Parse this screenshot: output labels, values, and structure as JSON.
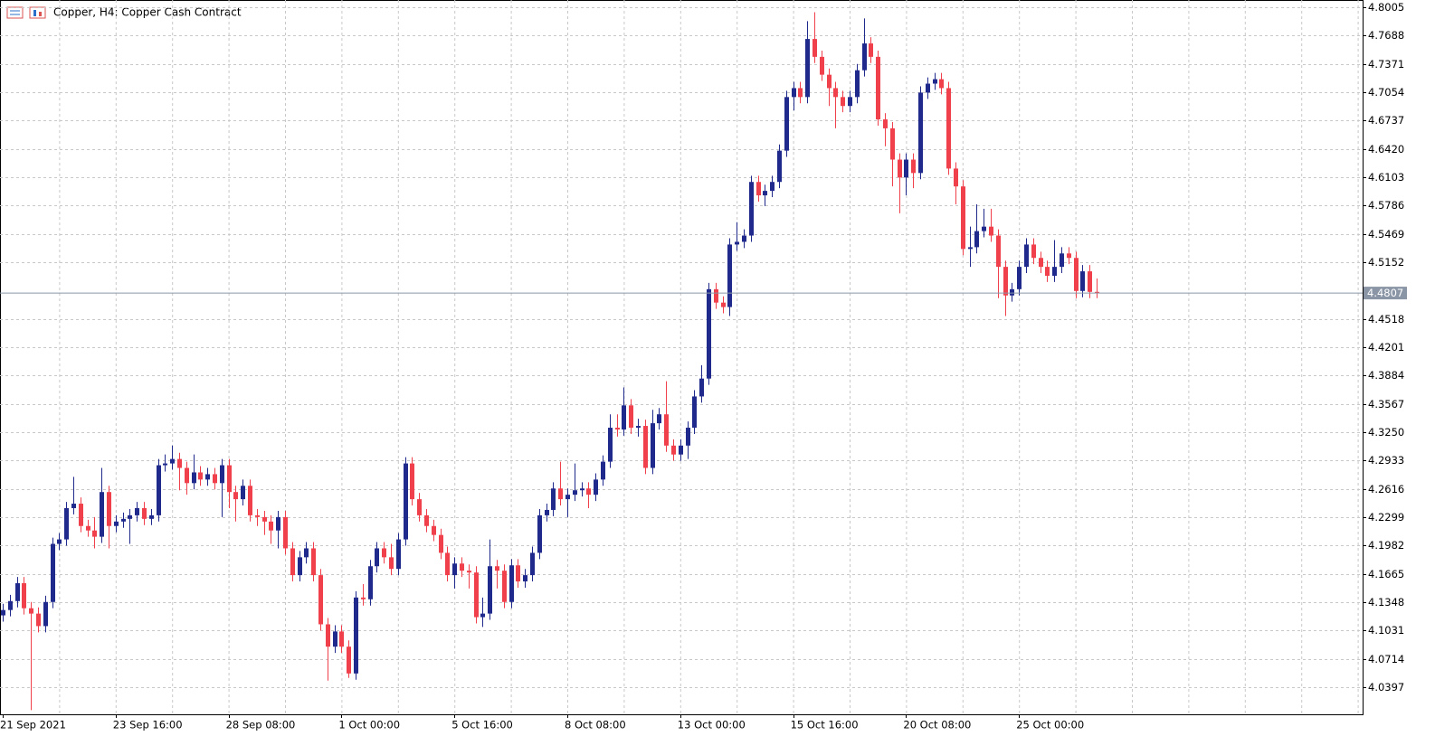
{
  "chart_data": {
    "type": "candlestick",
    "title": "Copper, H4:  Copper Cash Contract",
    "bull_color": "#1f2a8c",
    "bear_color": "#f0404c",
    "ylim": [
      4.0093,
      4.8086
    ],
    "yticks": [
      {
        "value": 4.8005,
        "label": "4.8005"
      },
      {
        "value": 4.7688,
        "label": "4.7688"
      },
      {
        "value": 4.7371,
        "label": "4.7371"
      },
      {
        "value": 4.7054,
        "label": "4.7054"
      },
      {
        "value": 4.6737,
        "label": "4.6737"
      },
      {
        "value": 4.642,
        "label": "4.6420"
      },
      {
        "value": 4.6103,
        "label": "4.6103"
      },
      {
        "value": 4.5786,
        "label": "4.5786"
      },
      {
        "value": 4.5469,
        "label": "4.5469"
      },
      {
        "value": 4.5152,
        "label": "4.5152"
      },
      {
        "value": 4.4518,
        "label": "4.4518"
      },
      {
        "value": 4.4201,
        "label": "4.4201"
      },
      {
        "value": 4.3884,
        "label": "4.3884"
      },
      {
        "value": 4.3567,
        "label": "4.3567"
      },
      {
        "value": 4.325,
        "label": "4.3250"
      },
      {
        "value": 4.2933,
        "label": "4.2933"
      },
      {
        "value": 4.2616,
        "label": "4.2616"
      },
      {
        "value": 4.2299,
        "label": "4.2299"
      },
      {
        "value": 4.1982,
        "label": "4.1982"
      },
      {
        "value": 4.1665,
        "label": "4.1665"
      },
      {
        "value": 4.1348,
        "label": "4.1348"
      },
      {
        "value": 4.1031,
        "label": "4.1031"
      },
      {
        "value": 4.0714,
        "label": "4.0714"
      },
      {
        "value": 4.0397,
        "label": "4.0397"
      }
    ],
    "grid": true,
    "current_price": 4.4807,
    "categories": [
      "21 Sep 2021",
      null,
      null,
      null,
      null,
      null,
      null,
      null,
      null,
      null,
      null,
      null,
      null,
      null,
      null,
      null,
      "23 Sep 16:00",
      null,
      null,
      null,
      null,
      null,
      null,
      null,
      null,
      null,
      null,
      null,
      null,
      null,
      null,
      null,
      "28 Sep 08:00",
      null,
      null,
      null,
      null,
      null,
      null,
      null,
      null,
      null,
      null,
      null,
      null,
      null,
      null,
      null,
      "1 Oct 00:00",
      null,
      null,
      null,
      null,
      null,
      null,
      null,
      null,
      null,
      null,
      null,
      null,
      null,
      null,
      null,
      "5 Oct 16:00",
      null,
      null,
      null,
      null,
      null,
      null,
      null,
      null,
      null,
      null,
      null,
      null,
      null,
      null,
      null,
      "8 Oct 08:00",
      null,
      null,
      null,
      null,
      null,
      null,
      null,
      null,
      null,
      null,
      null,
      null,
      null,
      null,
      null,
      "13 Oct 00:00",
      null,
      null,
      null,
      null,
      null,
      null,
      null,
      null,
      null,
      null,
      null,
      null,
      null,
      null,
      null,
      "15 Oct 16:00",
      null,
      null,
      null,
      null,
      null,
      null,
      null,
      null,
      null,
      null,
      null,
      null,
      null,
      null,
      null,
      "20 Oct 08:00",
      null,
      null,
      null,
      null,
      null,
      null,
      null,
      null,
      null,
      null,
      null,
      null,
      null,
      null,
      null,
      "25 Oct 00:00",
      null,
      null,
      null,
      null,
      null,
      null,
      null,
      null,
      null,
      null,
      null
    ],
    "ohlc": [
      [
        4.12,
        4.133,
        4.113,
        4.126
      ],
      [
        4.126,
        4.143,
        4.119,
        4.136
      ],
      [
        4.136,
        4.163,
        4.129,
        4.156
      ],
      [
        4.156,
        4.163,
        4.121,
        4.128
      ],
      [
        4.128,
        4.135,
        4.014,
        4.122
      ],
      [
        4.122,
        4.129,
        4.101,
        4.108
      ],
      [
        4.108,
        4.142,
        4.101,
        4.135
      ],
      [
        4.135,
        4.207,
        4.128,
        4.2
      ],
      [
        4.2,
        4.212,
        4.193,
        4.205
      ],
      [
        4.205,
        4.247,
        4.198,
        4.24
      ],
      [
        4.24,
        4.275,
        4.233,
        4.245
      ],
      [
        4.245,
        4.252,
        4.213,
        4.22
      ],
      [
        4.22,
        4.227,
        4.208,
        4.215
      ],
      [
        4.215,
        4.23,
        4.195,
        4.208
      ],
      [
        4.208,
        4.285,
        4.201,
        4.258
      ],
      [
        4.258,
        4.265,
        4.195,
        4.22
      ],
      [
        4.22,
        4.232,
        4.213,
        4.225
      ],
      [
        4.225,
        4.235,
        4.218,
        4.228
      ],
      [
        4.228,
        4.239,
        4.2,
        4.232
      ],
      [
        4.232,
        4.247,
        4.225,
        4.24
      ],
      [
        4.24,
        4.247,
        4.221,
        4.228
      ],
      [
        4.228,
        4.239,
        4.221,
        4.232
      ],
      [
        4.232,
        4.295,
        4.225,
        4.288
      ],
      [
        4.288,
        4.3,
        4.281,
        4.29
      ],
      [
        4.29,
        4.31,
        4.283,
        4.295
      ],
      [
        4.295,
        4.302,
        4.26,
        4.285
      ],
      [
        4.285,
        4.292,
        4.255,
        4.268
      ],
      [
        4.268,
        4.3,
        4.261,
        4.28
      ],
      [
        4.28,
        4.287,
        4.265,
        4.272
      ],
      [
        4.272,
        4.285,
        4.265,
        4.278
      ],
      [
        4.278,
        4.285,
        4.261,
        4.268
      ],
      [
        4.268,
        4.295,
        4.23,
        4.288
      ],
      [
        4.288,
        4.295,
        4.24,
        4.258
      ],
      [
        4.258,
        4.265,
        4.225,
        4.25
      ],
      [
        4.25,
        4.272,
        4.243,
        4.265
      ],
      [
        4.265,
        4.272,
        4.225,
        4.232
      ],
      [
        4.232,
        4.239,
        4.22,
        4.23
      ],
      [
        4.23,
        4.237,
        4.21,
        4.225
      ],
      [
        4.225,
        4.232,
        4.2,
        4.215
      ],
      [
        4.215,
        4.237,
        4.195,
        4.23
      ],
      [
        4.23,
        4.237,
        4.188,
        4.195
      ],
      [
        4.195,
        4.202,
        4.158,
        4.165
      ],
      [
        4.165,
        4.192,
        4.158,
        4.185
      ],
      [
        4.185,
        4.202,
        4.178,
        4.195
      ],
      [
        4.195,
        4.202,
        4.158,
        4.165
      ],
      [
        4.165,
        4.172,
        4.103,
        4.11
      ],
      [
        4.11,
        4.117,
        4.047,
        4.085
      ],
      [
        4.085,
        4.109,
        4.078,
        4.102
      ],
      [
        4.102,
        4.109,
        4.078,
        4.085
      ],
      [
        4.085,
        4.092,
        4.05,
        4.055
      ],
      [
        4.055,
        4.147,
        4.048,
        4.14
      ],
      [
        4.14,
        4.155,
        4.131,
        4.138
      ],
      [
        4.138,
        4.182,
        4.131,
        4.175
      ],
      [
        4.175,
        4.202,
        4.168,
        4.195
      ],
      [
        4.195,
        4.202,
        4.178,
        4.185
      ],
      [
        4.185,
        4.2,
        4.165,
        4.172
      ],
      [
        4.172,
        4.212,
        4.165,
        4.205
      ],
      [
        4.205,
        4.297,
        4.198,
        4.29
      ],
      [
        4.29,
        4.297,
        4.243,
        4.25
      ],
      [
        4.25,
        4.257,
        4.225,
        4.232
      ],
      [
        4.232,
        4.239,
        4.213,
        4.22
      ],
      [
        4.22,
        4.227,
        4.203,
        4.21
      ],
      [
        4.21,
        4.217,
        4.183,
        4.19
      ],
      [
        4.19,
        4.197,
        4.158,
        4.165
      ],
      [
        4.165,
        4.185,
        4.15,
        4.178
      ],
      [
        4.178,
        4.185,
        4.163,
        4.17
      ],
      [
        4.17,
        4.177,
        4.15,
        4.168
      ],
      [
        4.168,
        4.175,
        4.111,
        4.118
      ],
      [
        4.118,
        4.14,
        4.107,
        4.122
      ],
      [
        4.122,
        4.205,
        4.115,
        4.175
      ],
      [
        4.175,
        4.182,
        4.15,
        4.17
      ],
      [
        4.17,
        4.177,
        4.128,
        4.135
      ],
      [
        4.135,
        4.183,
        4.128,
        4.176
      ],
      [
        4.176,
        4.183,
        4.151,
        4.158
      ],
      [
        4.158,
        4.172,
        4.151,
        4.165
      ],
      [
        4.165,
        4.197,
        4.158,
        4.19
      ],
      [
        4.19,
        4.239,
        4.183,
        4.232
      ],
      [
        4.232,
        4.245,
        4.225,
        4.238
      ],
      [
        4.238,
        4.269,
        4.231,
        4.262
      ],
      [
        4.262,
        4.292,
        4.243,
        4.25
      ],
      [
        4.25,
        4.262,
        4.23,
        4.255
      ],
      [
        4.255,
        4.29,
        4.248,
        4.26
      ],
      [
        4.26,
        4.269,
        4.253,
        4.262
      ],
      [
        4.262,
        4.269,
        4.24,
        4.255
      ],
      [
        4.255,
        4.279,
        4.248,
        4.272
      ],
      [
        4.272,
        4.299,
        4.265,
        4.292
      ],
      [
        4.292,
        4.345,
        4.285,
        4.33
      ],
      [
        4.33,
        4.345,
        4.32,
        4.328
      ],
      [
        4.328,
        4.375,
        4.321,
        4.355
      ],
      [
        4.355,
        4.362,
        4.323,
        4.33
      ],
      [
        4.33,
        4.34,
        4.32,
        4.332
      ],
      [
        4.332,
        4.339,
        4.278,
        4.285
      ],
      [
        4.285,
        4.35,
        4.278,
        4.335
      ],
      [
        4.335,
        4.352,
        4.328,
        4.345
      ],
      [
        4.345,
        4.382,
        4.303,
        4.31
      ],
      [
        4.31,
        4.317,
        4.293,
        4.3
      ],
      [
        4.3,
        4.317,
        4.293,
        4.31
      ],
      [
        4.31,
        4.337,
        4.295,
        4.33
      ],
      [
        4.33,
        4.372,
        4.323,
        4.365
      ],
      [
        4.365,
        4.4,
        4.358,
        4.385
      ],
      [
        4.385,
        4.492,
        4.378,
        4.485
      ],
      [
        4.485,
        4.492,
        4.463,
        4.47
      ],
      [
        4.47,
        4.477,
        4.458,
        4.465
      ],
      [
        4.465,
        4.542,
        4.455,
        4.535
      ],
      [
        4.535,
        4.56,
        4.528,
        4.538
      ],
      [
        4.538,
        4.552,
        4.531,
        4.545
      ],
      [
        4.545,
        4.612,
        4.538,
        4.605
      ],
      [
        4.605,
        4.612,
        4.583,
        4.59
      ],
      [
        4.59,
        4.602,
        4.578,
        4.595
      ],
      [
        4.595,
        4.612,
        4.588,
        4.605
      ],
      [
        4.605,
        4.647,
        4.598,
        4.64
      ],
      [
        4.64,
        4.707,
        4.633,
        4.7
      ],
      [
        4.7,
        4.717,
        4.685,
        4.71
      ],
      [
        4.71,
        4.717,
        4.693,
        4.7
      ],
      [
        4.7,
        4.785,
        4.693,
        4.765
      ],
      [
        4.765,
        4.795,
        4.738,
        4.745
      ],
      [
        4.745,
        4.752,
        4.718,
        4.725
      ],
      [
        4.725,
        4.732,
        4.69,
        4.71
      ],
      [
        4.71,
        4.717,
        4.665,
        4.7
      ],
      [
        4.7,
        4.707,
        4.683,
        4.69
      ],
      [
        4.69,
        4.707,
        4.683,
        4.7
      ],
      [
        4.7,
        4.737,
        4.693,
        4.73
      ],
      [
        4.73,
        4.788,
        4.723,
        4.76
      ],
      [
        4.76,
        4.767,
        4.738,
        4.745
      ],
      [
        4.745,
        4.752,
        4.668,
        4.675
      ],
      [
        4.675,
        4.682,
        4.645,
        4.665
      ],
      [
        4.665,
        4.672,
        4.6,
        4.63
      ],
      [
        4.63,
        4.637,
        4.57,
        4.61
      ],
      [
        4.61,
        4.637,
        4.59,
        4.63
      ],
      [
        4.63,
        4.637,
        4.598,
        4.615
      ],
      [
        4.615,
        4.712,
        4.608,
        4.705
      ],
      [
        4.705,
        4.722,
        4.698,
        4.715
      ],
      [
        4.715,
        4.727,
        4.708,
        4.72
      ],
      [
        4.72,
        4.727,
        4.703,
        4.71
      ],
      [
        4.71,
        4.717,
        4.613,
        4.62
      ],
      [
        4.62,
        4.627,
        4.58,
        4.6
      ],
      [
        4.6,
        4.607,
        4.523,
        4.53
      ],
      [
        4.53,
        4.555,
        4.51,
        4.532
      ],
      [
        4.532,
        4.58,
        4.525,
        4.55
      ],
      [
        4.55,
        4.575,
        4.543,
        4.555
      ],
      [
        4.555,
        4.575,
        4.538,
        4.545
      ],
      [
        4.545,
        4.552,
        4.475,
        4.51
      ],
      [
        4.51,
        4.517,
        4.455,
        4.478
      ],
      [
        4.478,
        4.492,
        4.471,
        4.485
      ],
      [
        4.485,
        4.517,
        4.478,
        4.51
      ],
      [
        4.51,
        4.542,
        4.503,
        4.535
      ],
      [
        4.535,
        4.542,
        4.513,
        4.52
      ],
      [
        4.52,
        4.527,
        4.503,
        4.51
      ],
      [
        4.51,
        4.517,
        4.493,
        4.5
      ],
      [
        4.5,
        4.54,
        4.493,
        4.51
      ],
      [
        4.51,
        4.532,
        4.503,
        4.525
      ],
      [
        4.525,
        4.532,
        4.513,
        4.52
      ],
      [
        4.52,
        4.527,
        4.475,
        4.483
      ],
      [
        4.483,
        4.512,
        4.476,
        4.505
      ],
      [
        4.505,
        4.512,
        4.475,
        4.482
      ],
      [
        4.482,
        4.497,
        4.475,
        4.4807
      ]
    ]
  }
}
